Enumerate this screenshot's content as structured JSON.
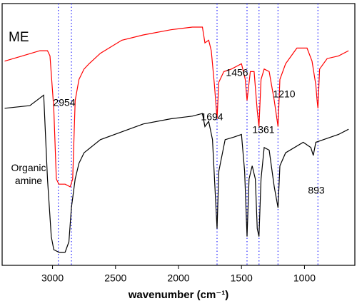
{
  "chart_data": {
    "type": "line",
    "x_label": "wavenumber (cm⁻¹)",
    "xlim": [
      3400,
      600
    ],
    "xticks": [
      3000,
      2500,
      2000,
      1500,
      1000
    ],
    "ylim": [
      0,
      100
    ],
    "grid": false,
    "peaks": [
      2954,
      2850,
      1694,
      1456,
      1361,
      1210,
      893
    ],
    "peak_color": "#3333ff",
    "annotations": [
      "2954",
      "1694",
      "1456",
      "1361",
      "1210",
      "893"
    ],
    "series": [
      {
        "name": "ME",
        "color": "#ff0000",
        "x": [
          3380,
          3240,
          3100,
          3040,
          3020,
          2990,
          2970,
          2950,
          2900,
          2860,
          2840,
          2820,
          2790,
          2750,
          2710,
          2620,
          2450,
          2280,
          2060,
          1890,
          1810,
          1790,
          1760,
          1740,
          1715,
          1694,
          1680,
          1640,
          1580,
          1500,
          1470,
          1456,
          1430,
          1400,
          1375,
          1361,
          1345,
          1320,
          1280,
          1240,
          1210,
          1195,
          1150,
          1060,
          980,
          940,
          910,
          900,
          893,
          880,
          820,
          730,
          650
        ],
        "values": [
          78,
          80,
          82,
          82,
          80,
          60,
          33,
          31,
          31,
          30,
          33,
          63,
          71,
          75,
          77,
          81,
          86,
          88,
          90,
          91,
          91,
          85,
          86,
          82,
          69,
          56,
          70,
          74,
          75,
          77,
          71,
          63,
          74,
          74,
          59,
          53,
          71,
          75,
          74,
          63,
          53,
          71,
          77,
          83,
          83,
          78,
          69,
          63,
          60,
          75,
          79,
          80,
          82
        ]
      },
      {
        "name": "Organic amine",
        "color": "#000000",
        "x": [
          3380,
          3180,
          3070,
          3040,
          3010,
          2990,
          2950,
          2900,
          2870,
          2850,
          2820,
          2790,
          2750,
          2620,
          2450,
          2280,
          2060,
          1890,
          1810,
          1790,
          1760,
          1730,
          1694,
          1680,
          1630,
          1560,
          1500,
          1475,
          1456,
          1440,
          1415,
          1390,
          1375,
          1361,
          1345,
          1320,
          1280,
          1240,
          1210,
          1195,
          1150,
          1010,
          950,
          930,
          910,
          850,
          730,
          650
        ],
        "values": [
          60,
          61,
          65,
          33,
          11,
          6,
          5,
          5,
          9,
          22,
          33,
          39,
          43,
          48,
          51,
          54,
          56,
          57,
          58,
          53,
          55,
          48,
          14,
          36,
          48,
          49,
          50,
          36,
          11,
          33,
          38,
          33,
          14,
          11,
          33,
          45,
          44,
          30,
          22,
          38,
          43,
          47,
          45,
          42,
          47,
          48,
          50,
          52
        ]
      }
    ]
  }
}
